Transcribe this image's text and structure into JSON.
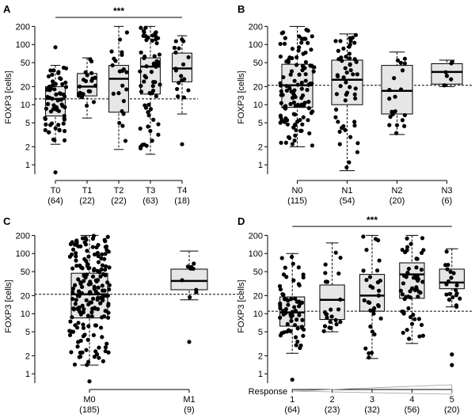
{
  "chart_data": [
    {
      "panel": "A",
      "type": "box",
      "ylabel": "FOXP3 [cells]",
      "yscale": "log",
      "ylim": [
        0.7,
        250
      ],
      "yticks": [
        1,
        2,
        5,
        10,
        20,
        50,
        100,
        200
      ],
      "reference_line": 12.5,
      "significance": "***",
      "significance_span": [
        0,
        4
      ],
      "categories": [
        "T0",
        "T1",
        "T2",
        "T3",
        "T4"
      ],
      "counts": [
        "(64)",
        "(22)",
        "(22)",
        "(63)",
        "(18)"
      ],
      "boxes": [
        {
          "min": 2.2,
          "q1": 6.5,
          "median": 12.5,
          "q3": 20,
          "max": 45
        },
        {
          "min": 6,
          "q1": 14,
          "median": 20,
          "q3": 33,
          "max": 60
        },
        {
          "min": 1.8,
          "q1": 7.5,
          "median": 27,
          "q3": 45,
          "max": 200
        },
        {
          "min": 1.5,
          "q1": 15,
          "median": 43,
          "q3": 60,
          "max": 200
        },
        {
          "min": 7,
          "q1": 24,
          "median": 40,
          "q3": 72,
          "max": 140
        }
      ],
      "outliers": [
        [
          0.75,
          90
        ],
        [],
        [],
        [],
        [
          2.2
        ]
      ]
    },
    {
      "panel": "B",
      "type": "box",
      "ylabel": "FOXP3 [cells]",
      "yscale": "log",
      "ylim": [
        0.7,
        250
      ],
      "yticks": [
        1,
        2,
        5,
        10,
        20,
        50,
        100,
        200
      ],
      "reference_line": 21,
      "categories": [
        "N0",
        "N1",
        "N2",
        "N3"
      ],
      "counts": [
        "(115)",
        "(54)",
        "(20)",
        "(6)"
      ],
      "boxes": [
        {
          "min": 2,
          "q1": 9,
          "median": 21,
          "q3": 47,
          "max": 200
        },
        {
          "min": 0.8,
          "q1": 10,
          "median": 26,
          "q3": 55,
          "max": 150
        },
        {
          "min": 3.2,
          "q1": 7,
          "median": 17,
          "q3": 45,
          "max": 75
        },
        {
          "min": 20,
          "q1": 22,
          "median": 35,
          "q3": 48,
          "max": 55
        }
      ],
      "outliers": [
        [],
        [],
        [],
        []
      ]
    },
    {
      "panel": "C",
      "type": "box",
      "ylabel": "FOXP3 [cells]",
      "yscale": "log",
      "ylim": [
        0.7,
        250
      ],
      "yticks": [
        1,
        2,
        5,
        10,
        20,
        50,
        100,
        200
      ],
      "reference_line": 21,
      "categories": [
        "M0",
        "M1"
      ],
      "counts": [
        "(185)",
        "(9)"
      ],
      "boxes": [
        {
          "min": 1.4,
          "q1": 8.5,
          "median": 21,
          "q3": 47,
          "max": 200
        },
        {
          "min": 17,
          "q1": 25,
          "median": 35,
          "q3": 55,
          "max": 110
        }
      ],
      "outliers": [
        [
          0.75
        ],
        [
          3.4
        ]
      ]
    },
    {
      "panel": "D",
      "type": "box",
      "ylabel": "FOXP3 [cells]",
      "yscale": "log",
      "ylim": [
        0.7,
        250
      ],
      "yticks": [
        1,
        2,
        5,
        10,
        20,
        50,
        100,
        200
      ],
      "reference_line": 11,
      "significance": "***",
      "significance_span": [
        0,
        4
      ],
      "xlabel": "Response",
      "categories": [
        "1",
        "2",
        "3",
        "4",
        "5"
      ],
      "counts": [
        "(64)",
        "(23)",
        "(32)",
        "(56)",
        "(20)"
      ],
      "boxes": [
        {
          "min": 2.2,
          "q1": 6.2,
          "median": 10.5,
          "q3": 19,
          "max": 100
        },
        {
          "min": 5,
          "q1": 8,
          "median": 17,
          "q3": 30,
          "max": 150
        },
        {
          "min": 1.8,
          "q1": 11,
          "median": 20,
          "q3": 45,
          "max": 200
        },
        {
          "min": 3.2,
          "q1": 18,
          "median": 45,
          "q3": 70,
          "max": 200
        },
        {
          "min": 13,
          "q1": 26,
          "median": 33,
          "q3": 55,
          "max": 120
        }
      ],
      "outliers": [
        [
          0.8
        ],
        [],
        [],
        [],
        [
          2.1,
          1.4
        ]
      ]
    }
  ],
  "panel_letters": [
    "A",
    "B",
    "C",
    "D"
  ],
  "colors": {
    "box_fill": "#e6e6e6",
    "dot": "#000000",
    "axis": "#000000"
  }
}
